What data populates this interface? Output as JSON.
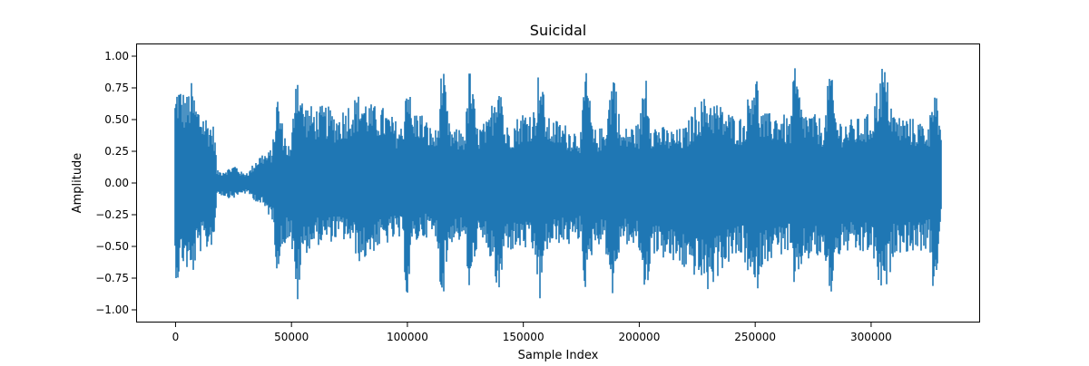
{
  "chart_data": {
    "type": "line",
    "title": "Suicidal",
    "xlabel": "Sample Index",
    "ylabel": "Amplitude",
    "xlim": [
      -17000,
      347000
    ],
    "ylim": [
      -1.1,
      1.1
    ],
    "xticks": [
      0,
      50000,
      100000,
      150000,
      200000,
      250000,
      300000
    ],
    "xtick_labels": [
      "0",
      "50000",
      "100000",
      "150000",
      "200000",
      "250000",
      "300000"
    ],
    "yticks": [
      1.0,
      0.75,
      0.5,
      0.25,
      0.0,
      -0.25,
      -0.5,
      -0.75,
      -1.0
    ],
    "ytick_labels": [
      "1.00",
      "0.75",
      "0.50",
      "0.25",
      "0.00",
      "−0.25",
      "−0.50",
      "−0.75",
      "−1.00"
    ],
    "grid": false,
    "series": [
      {
        "color": "#1f77b4",
        "x_range": [
          0,
          330000
        ],
        "envelope": {
          "x": [
            0,
            1000,
            3000,
            5000,
            7000,
            9000,
            11000,
            13000,
            15000,
            17000,
            18000,
            20000,
            23000,
            26000,
            29000,
            32000,
            35000,
            38000,
            40000,
            42000,
            44000,
            46000,
            48000,
            50000,
            52000,
            53000,
            55000,
            60000,
            65000,
            70000,
            75000,
            80000,
            85000,
            90000,
            95000,
            98000,
            100000,
            102000,
            105000,
            110000,
            113000,
            115000,
            118000,
            120000,
            125000,
            127000,
            130000,
            135000,
            140000,
            142000,
            145000,
            150000,
            155000,
            157000,
            160000,
            165000,
            170000,
            175000,
            177000,
            180000,
            185000,
            189000,
            192000,
            195000,
            200000,
            203000,
            205000,
            210000,
            215000,
            220000,
            225000,
            230000,
            235000,
            240000,
            245000,
            250000,
            252000,
            255000,
            260000,
            265000,
            267000,
            270000,
            275000,
            280000,
            282000,
            285000,
            290000,
            295000,
            300000,
            305000,
            310000,
            315000,
            320000,
            325000,
            327000,
            330000
          ],
          "upper": [
            0.7,
            0.82,
            0.75,
            0.7,
            0.8,
            0.65,
            0.6,
            0.55,
            0.5,
            0.45,
            0.1,
            0.1,
            0.12,
            0.15,
            0.08,
            0.1,
            0.2,
            0.25,
            0.24,
            0.3,
            0.73,
            0.5,
            0.35,
            0.28,
            0.97,
            0.92,
            0.65,
            0.6,
            0.62,
            0.55,
            0.65,
            0.72,
            0.62,
            0.6,
            0.5,
            0.45,
            0.98,
            0.55,
            0.6,
            0.45,
            0.42,
            0.99,
            0.48,
            0.42,
            0.45,
            0.97,
            0.45,
            0.5,
            0.98,
            0.45,
            0.48,
            0.58,
            0.6,
            0.98,
            0.52,
            0.5,
            0.45,
            0.42,
            0.98,
            0.42,
            0.45,
            0.97,
            0.42,
            0.45,
            0.48,
            0.96,
            0.5,
            0.45,
            0.42,
            0.45,
            0.65,
            0.7,
            0.62,
            0.55,
            0.52,
            0.98,
            0.6,
            0.55,
            0.58,
            0.5,
            0.97,
            0.6,
            0.55,
            0.5,
            0.98,
            0.52,
            0.5,
            0.52,
            0.56,
            0.98,
            0.55,
            0.53,
            0.5,
            0.48,
            0.98,
            0.35
          ],
          "lower": [
            -0.72,
            -0.8,
            -0.65,
            -0.7,
            -0.8,
            -0.62,
            -0.55,
            -0.55,
            -0.52,
            -0.45,
            -0.08,
            -0.1,
            -0.12,
            -0.12,
            -0.08,
            -0.1,
            -0.15,
            -0.2,
            -0.25,
            -0.3,
            -0.72,
            -0.55,
            -0.45,
            -0.45,
            -0.98,
            -0.95,
            -0.58,
            -0.5,
            -0.48,
            -0.45,
            -0.47,
            -0.65,
            -0.55,
            -0.5,
            -0.45,
            -0.48,
            -0.98,
            -0.55,
            -0.45,
            -0.42,
            -0.5,
            -0.98,
            -0.52,
            -0.45,
            -0.48,
            -0.98,
            -0.5,
            -0.55,
            -0.98,
            -0.5,
            -0.55,
            -0.52,
            -0.6,
            -0.98,
            -0.55,
            -0.48,
            -0.5,
            -0.45,
            -0.98,
            -0.5,
            -0.48,
            -0.97,
            -0.45,
            -0.5,
            -0.55,
            -0.98,
            -0.55,
            -0.6,
            -0.65,
            -0.7,
            -0.75,
            -0.88,
            -0.7,
            -0.62,
            -0.6,
            -0.98,
            -0.7,
            -0.62,
            -0.58,
            -0.55,
            -0.98,
            -0.65,
            -0.6,
            -0.62,
            -0.98,
            -0.6,
            -0.55,
            -0.58,
            -0.55,
            -0.98,
            -0.55,
            -0.55,
            -0.55,
            -0.52,
            -0.98,
            -0.3
          ]
        }
      }
    ]
  }
}
